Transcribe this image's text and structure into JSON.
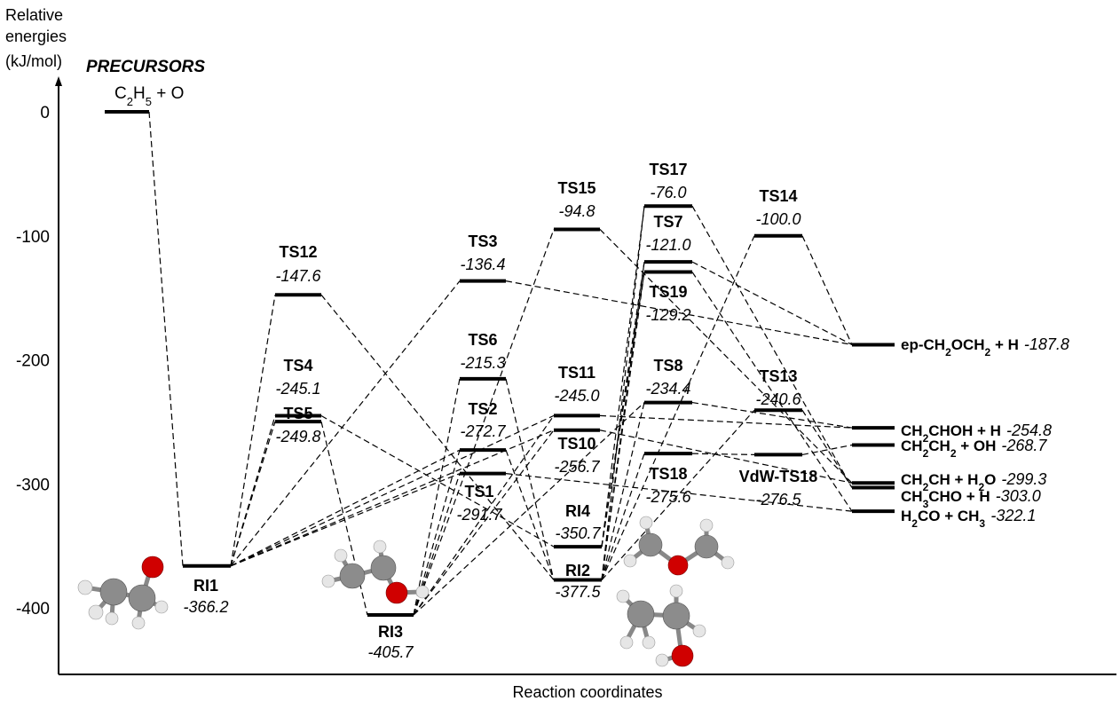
{
  "axes": {
    "ylabel_line1": "Relative",
    "ylabel_line2": "energies",
    "ylabel_line3": "(kJ/mol)",
    "xlabel": "Reaction coordinates",
    "yticks": [
      {
        "label": "0",
        "value": 0
      },
      {
        "label": "-100",
        "value": -100
      },
      {
        "label": "-200",
        "value": -200
      },
      {
        "label": "-300",
        "value": -300
      },
      {
        "label": "-400",
        "value": -400
      }
    ]
  },
  "precursors": {
    "heading": "PRECURSORS",
    "species": "C2H5 + O",
    "energy": 0
  },
  "colors": {
    "oxygen": "#d00000",
    "carbon": "#8c8c8c",
    "hydrogen": "#e6e6e6"
  },
  "chart_data": {
    "type": "energy-profile",
    "xlabel": "Reaction coordinates",
    "ylabel": "Relative energies (kJ/mol)",
    "ylim": [
      -440,
      0
    ],
    "states": [
      {
        "name": "C2H5 + O",
        "energy": 0
      },
      {
        "name": "RI1",
        "energy": -366.2,
        "energy_label": "-366.2"
      },
      {
        "name": "RI3",
        "energy": -405.7,
        "energy_label": "-405.7"
      },
      {
        "name": "RI2",
        "energy": -377.5,
        "energy_label": "-377.5"
      },
      {
        "name": "RI4",
        "energy": -350.7,
        "energy_label": "-350.7"
      },
      {
        "name": "TS12",
        "energy": -147.6,
        "energy_label": "-147.6"
      },
      {
        "name": "TS4",
        "energy": -245.1,
        "energy_label": "-245.1"
      },
      {
        "name": "TS5",
        "energy": -249.8,
        "energy_label": "-249.8"
      },
      {
        "name": "TS3",
        "energy": -136.4,
        "energy_label": "-136.4"
      },
      {
        "name": "TS6",
        "energy": -215.3,
        "energy_label": "-215.3"
      },
      {
        "name": "TS2",
        "energy": -272.7,
        "energy_label": "-272.7"
      },
      {
        "name": "TS1",
        "energy": -291.7,
        "energy_label": "-291.7"
      },
      {
        "name": "TS15",
        "energy": -94.8,
        "energy_label": "-94.8"
      },
      {
        "name": "TS11",
        "energy": -245.0,
        "energy_label": "-245.0"
      },
      {
        "name": "TS10",
        "energy": -256.7,
        "energy_label": "-256.7"
      },
      {
        "name": "TS17",
        "energy": -76.0,
        "energy_label": "-76.0"
      },
      {
        "name": "TS7",
        "energy": -121.0,
        "energy_label": "-121.0"
      },
      {
        "name": "TS19",
        "energy": -129.2,
        "energy_label": "-129.2"
      },
      {
        "name": "TS8",
        "energy": -234.4,
        "energy_label": "-234.4"
      },
      {
        "name": "TS18",
        "energy": -275.6,
        "energy_label": "-275.6"
      },
      {
        "name": "TS14",
        "energy": -100.0,
        "energy_label": "-100.0"
      },
      {
        "name": "TS13",
        "energy": -240.6,
        "energy_label": "-240.6"
      },
      {
        "name": "VdW-TS18",
        "energy": -276.5,
        "energy_label": "-276.5"
      },
      {
        "name": "ep-CH2OCH2 + H",
        "energy": -187.8,
        "energy_label": "-187.8"
      },
      {
        "name": "CH2CHOH + H",
        "energy": -254.8,
        "energy_label": "-254.8"
      },
      {
        "name": "CH2CH2 + OH",
        "energy": -268.7,
        "energy_label": "-268.7"
      },
      {
        "name": "CH2CH + H2O",
        "energy": -299.3,
        "energy_label": "-299.3"
      },
      {
        "name": "CH3CHO + H",
        "energy": -303.0,
        "energy_label": "-303.0"
      },
      {
        "name": "H2CO + CH3",
        "energy": -322.1,
        "energy_label": "-322.1"
      }
    ]
  }
}
